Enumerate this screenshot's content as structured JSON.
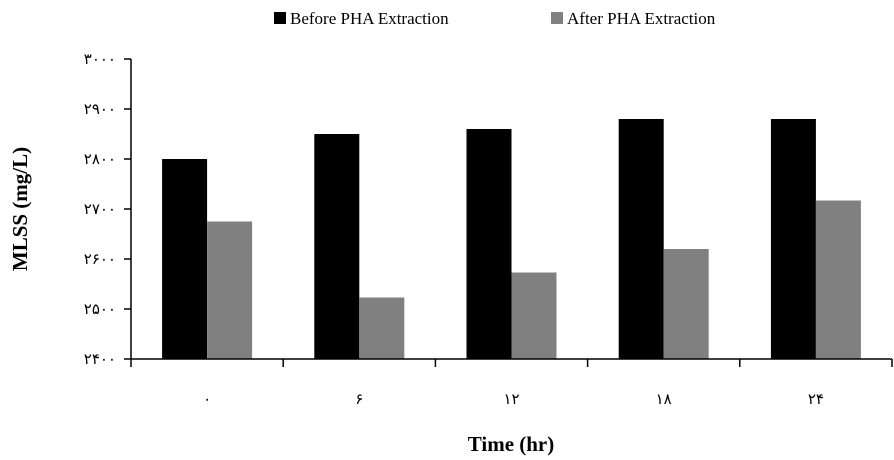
{
  "chart_data": {
    "type": "bar",
    "categories": [
      "٠",
      "۶",
      "١٢",
      "١٨",
      "٢۴"
    ],
    "series": [
      {
        "name": "Before PHA Extraction",
        "values": [
          2800,
          2850,
          2860,
          2880,
          2880
        ],
        "color": "#000000"
      },
      {
        "name": "After PHA Extraction",
        "values": [
          2675,
          2523,
          2573,
          2620,
          2717
        ],
        "color": "#808080"
      }
    ],
    "xlabel": "Time (hr)",
    "ylabel": "MLSS (mg/L)",
    "ylim": [
      2400,
      3000
    ],
    "yticks": [
      {
        "value": 2400,
        "label": "٢۴٠٠"
      },
      {
        "value": 2500,
        "label": "٢۵٠٠"
      },
      {
        "value": 2600,
        "label": "٢۶٠٠"
      },
      {
        "value": 2700,
        "label": "٢٧٠٠"
      },
      {
        "value": 2800,
        "label": "٢٨٠٠"
      },
      {
        "value": 2900,
        "label": "٢٩٠٠"
      },
      {
        "value": 3000,
        "label": "٣٠٠٠"
      }
    ],
    "grid": false,
    "legend_position": "top"
  }
}
